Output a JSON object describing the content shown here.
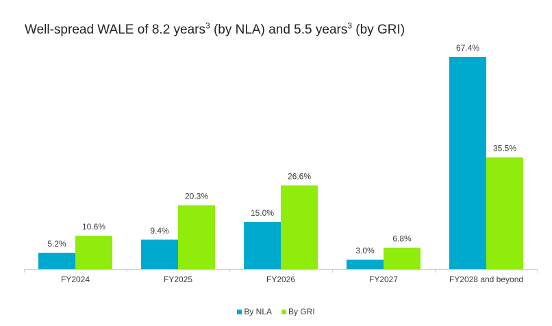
{
  "title": {
    "part1": "Well-spread WALE of 8.2 years",
    "sup1": "3",
    "part2": " (by NLA) and 5.5 years",
    "sup2": "3",
    "part3": " (by GRI)"
  },
  "colors": {
    "nla": "#00A9CE",
    "gri": "#8FEC0B",
    "axis": "#d0d0d0"
  },
  "chart_data": {
    "type": "bar",
    "categories": [
      "FY2024",
      "FY2025",
      "FY2026",
      "FY2027",
      "FY2028 and beyond"
    ],
    "series": [
      {
        "name": "By NLA",
        "values": [
          5.2,
          9.4,
          15.0,
          3.0,
          67.4
        ],
        "labels": [
          "5.2%",
          "9.4%",
          "15.0%",
          "3.0%",
          "67.4%"
        ]
      },
      {
        "name": "By GRI",
        "values": [
          10.6,
          20.3,
          26.6,
          6.8,
          35.5
        ],
        "labels": [
          "10.6%",
          "20.3%",
          "26.6%",
          "6.8%",
          "35.5%"
        ]
      }
    ],
    "ylim": [
      0,
      67.4
    ],
    "grid": false,
    "legend": "bottom-center"
  }
}
